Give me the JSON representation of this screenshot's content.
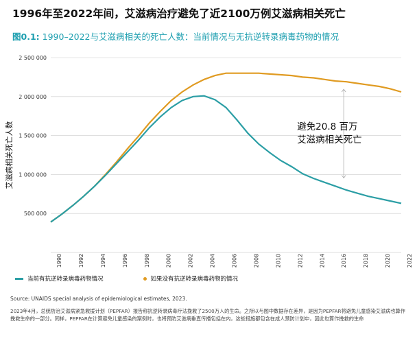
{
  "header": {
    "title": "1996年至2022年间，艾滋病治疗避免了近2100万例艾滋病相关死亡",
    "figure_label": "图0.1:",
    "subtitle": "1990–2022与艾滋病相关的死亡人数：当前情况与无抗逆转录病毒药物的情况"
  },
  "colors": {
    "current": "#2b9ea5",
    "no_art": "#e09b22",
    "subtitle": "#1e9fb0",
    "gridline": "#cccccc"
  },
  "chart_data": {
    "type": "line",
    "x": [
      1990,
      1991,
      1992,
      1993,
      1994,
      1995,
      1996,
      1997,
      1998,
      1999,
      2000,
      2001,
      2002,
      2003,
      2004,
      2005,
      2006,
      2007,
      2008,
      2009,
      2010,
      2011,
      2012,
      2013,
      2014,
      2015,
      2016,
      2017,
      2018,
      2019,
      2020,
      2021,
      2022
    ],
    "series": [
      {
        "name": "当前有抗逆转录病毒药物情况",
        "values": [
          390000,
          490000,
          600000,
          720000,
          850000,
          990000,
          1140000,
          1290000,
          1440000,
          1600000,
          1740000,
          1860000,
          1950000,
          2000000,
          2010000,
          1960000,
          1860000,
          1700000,
          1530000,
          1390000,
          1280000,
          1180000,
          1100000,
          1010000,
          950000,
          900000,
          850000,
          800000,
          760000,
          720000,
          690000,
          660000,
          630000
        ]
      },
      {
        "name": "如果没有抗逆转录病毒药物的情况",
        "values": [
          390000,
          490000,
          600000,
          720000,
          850000,
          1000000,
          1160000,
          1330000,
          1490000,
          1660000,
          1810000,
          1950000,
          2060000,
          2150000,
          2220000,
          2270000,
          2300000,
          2300000,
          2300000,
          2300000,
          2290000,
          2280000,
          2270000,
          2250000,
          2240000,
          2220000,
          2200000,
          2190000,
          2170000,
          2150000,
          2130000,
          2100000,
          2060000
        ]
      }
    ],
    "ylabel": "艾滋病相关死亡人数",
    "xlabel": "",
    "ylim": [
      0,
      2500000
    ],
    "yticks": [
      500000,
      1000000,
      1500000,
      2000000,
      2500000
    ],
    "ytick_labels": [
      "500 000",
      "1 000 000",
      "1 500 000",
      "2 000 000",
      "2 500 000"
    ],
    "xtick_labels": [
      "1990",
      "1992",
      "1994",
      "1996",
      "1998",
      "2000",
      "2002",
      "2004",
      "2006",
      "2008",
      "2010",
      "2012",
      "2014",
      "2016",
      "2018",
      "2020",
      "2022"
    ],
    "annotation": {
      "year": 2016,
      "line1": "避免20.8 百万",
      "line2": "艾滋病相关死亡"
    },
    "grid": "horizontal"
  },
  "legend": {
    "current": "当前有抗逆转录病毒药物情况",
    "no_art": "如果没有抗逆转录病毒药物的情况"
  },
  "source": "Source: UNAIDS special analysis of epidemiological estimates, 2023.",
  "footnote": "2023年4月，总统防治艾滋病紧急救援计划（PEPFAR）报告称抗逆转录病毒疗法挽救了2500万人的生命。之所以与图中数据存在差异，是因为PEPFAR将避免儿童感染艾滋病也算作挽救生命的一部分。同样，PEPFAR在计算避免儿童感染的案例时，也将预防艾滋病垂直传播包括在内，这些措施都包含在成人预防计划中，因此也算作挽救的生命"
}
